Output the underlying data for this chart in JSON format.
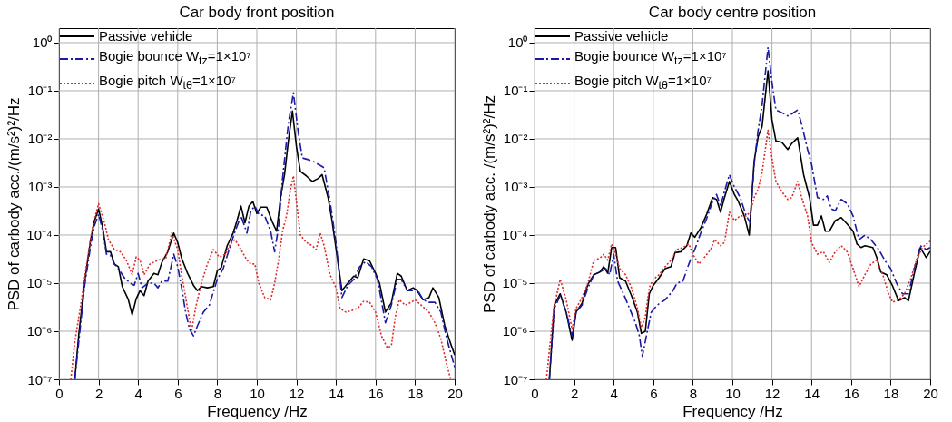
{
  "chart_data": [
    {
      "type": "line",
      "title": "Car body front position",
      "xlabel": "Frequency /Hz",
      "ylabel": "PSD of carbody acc./(m/s²)²/Hz",
      "log": "y",
      "grid": true,
      "legend": "top left",
      "xlim": [
        0,
        20
      ],
      "xticks": [
        0,
        2,
        4,
        6,
        8,
        10,
        12,
        14,
        16,
        18,
        20
      ],
      "ylim": [
        1e-07,
        2
      ],
      "yticks": [
        {
          "value": 1e-07,
          "label": "10⁻⁷"
        },
        {
          "value": 1e-06,
          "label": "10⁻⁶"
        },
        {
          "value": 1e-05,
          "label": "10⁻⁵"
        },
        {
          "value": 0.0001,
          "label": "10⁻⁴"
        },
        {
          "value": 0.001,
          "label": "10⁻³"
        },
        {
          "value": 0.01,
          "label": "10⁻²"
        },
        {
          "value": 0.1,
          "label": "10⁻¹"
        },
        {
          "value": 1,
          "label": "10⁰"
        }
      ],
      "series": [
        {
          "name": "Passive vehicle",
          "color": "#000000",
          "line_style": "solid",
          "x": [
            0.8,
            1.0,
            1.3,
            1.6,
            1.8,
            2.0,
            2.2,
            2.4,
            2.6,
            2.8,
            3.0,
            3.2,
            3.5,
            3.7,
            3.9,
            4.1,
            4.3,
            4.5,
            4.8,
            5.0,
            5.2,
            5.5,
            5.8,
            6.0,
            6.2,
            6.5,
            6.8,
            7.0,
            7.2,
            7.5,
            7.8,
            8.0,
            8.2,
            8.5,
            8.8,
            9.0,
            9.2,
            9.4,
            9.6,
            9.8,
            10.0,
            10.2,
            10.5,
            10.8,
            11.0,
            11.2,
            11.4,
            11.6,
            11.8,
            12.0,
            12.2,
            12.5,
            12.8,
            13.1,
            13.3,
            13.6,
            13.8,
            14.0,
            14.3,
            14.6,
            14.9,
            15.1,
            15.4,
            15.7,
            16.0,
            16.2,
            16.5,
            16.8,
            17.1,
            17.3,
            17.6,
            17.9,
            18.1,
            18.4,
            18.7,
            18.9,
            19.2,
            19.5,
            19.8,
            20.0
          ],
          "values": [
            1e-07,
            8.5e-07,
            1.1e-05,
            8e-05,
            0.0002,
            0.00035,
            0.00015,
            4.5e-05,
            4.5e-05,
            2.5e-05,
            2.2e-05,
            8.5e-06,
            4.6e-06,
            2.2e-06,
            4.7e-06,
            7e-06,
            5.5e-06,
            1.1e-05,
            1.6e-05,
            1.5e-05,
            2.7e-05,
            4.5e-05,
            0.00011,
            7e-05,
            3.3e-05,
            1.6e-05,
            9e-06,
            7e-06,
            8.5e-06,
            8e-06,
            8.5e-06,
            1.8e-05,
            2.1e-05,
            6e-05,
            0.00011,
            0.0002,
            0.0004,
            0.00018,
            0.0004,
            0.0005,
            0.00028,
            0.00038,
            0.00038,
            0.00018,
            0.00012,
            0.0006,
            0.0018,
            0.0095,
            0.038,
            0.007,
            0.0021,
            0.0017,
            0.0013,
            0.0015,
            0.0018,
            0.0006,
            0.0002,
            5.3e-05,
            7e-06,
            1e-05,
            1.4e-05,
            1.3e-05,
            3.2e-05,
            2.9e-05,
            1.6e-05,
            1e-05,
            2.5e-06,
            3.9e-06,
            1.6e-05,
            1.4e-05,
            7e-06,
            8e-06,
            7e-06,
            4.5e-06,
            5e-06,
            8e-06,
            5e-06,
            1.3e-06,
            5.5e-07,
            3.2e-07
          ]
        },
        {
          "name": "Bogie bounce W$_{tz}$=1×10⁷",
          "color": "#1a1aa6",
          "line_style": "dashed",
          "x": [
            0.8,
            1.0,
            1.3,
            1.6,
            1.8,
            2.0,
            2.2,
            2.4,
            2.6,
            2.8,
            3.0,
            3.3,
            3.6,
            3.8,
            4.0,
            4.2,
            4.5,
            4.8,
            5.0,
            5.2,
            5.5,
            5.8,
            6.0,
            6.2,
            6.4,
            6.6,
            6.8,
            7.0,
            7.3,
            7.6,
            8.0,
            8.3,
            8.6,
            8.9,
            9.2,
            9.5,
            9.7,
            9.9,
            10.1,
            10.4,
            10.7,
            10.9,
            11.1,
            11.3,
            11.6,
            11.85,
            12.1,
            12.3,
            12.6,
            12.9,
            13.2,
            13.4,
            13.7,
            14.0,
            14.3,
            14.6,
            14.9,
            15.2,
            15.5,
            15.8,
            16.1,
            16.5,
            16.8,
            17.1,
            17.3,
            17.6,
            17.9,
            18.1,
            18.4,
            18.7,
            19.0,
            19.3,
            19.6,
            20.0
          ],
          "values": [
            1e-07,
            6e-07,
            9e-06,
            6e-05,
            0.00016,
            0.00027,
            0.00013,
            4e-05,
            3.8e-05,
            2.5e-05,
            2e-05,
            1.3e-05,
            1e-05,
            9e-06,
            1.6e-05,
            8e-06,
            1e-05,
            1e-05,
            8e-06,
            1.1e-05,
            1.1e-05,
            4e-05,
            2.2e-05,
            8e-06,
            2.5e-06,
            1.1e-06,
            8e-07,
            1.3e-06,
            2.5e-06,
            3.5e-06,
            1.2e-05,
            2e-05,
            5e-05,
            0.00012,
            0.00025,
            0.00011,
            0.00032,
            0.0004,
            0.00027,
            0.00025,
            0.00012,
            4.5e-05,
            0.00015,
            0.0015,
            0.022,
            0.09,
            0.013,
            0.004,
            0.0037,
            0.0033,
            0.0028,
            0.0025,
            0.0005,
            7e-05,
            5e-06,
            9e-06,
            1.2e-05,
            2.2e-05,
            2.8e-05,
            2.2e-05,
            1.2e-05,
            1.5e-06,
            3.5e-06,
            1.2e-05,
            1.2e-05,
            7e-06,
            7e-06,
            7.5e-06,
            4.5e-06,
            4e-06,
            4e-06,
            2.5e-06,
            7e-07,
            1.8e-07
          ]
        },
        {
          "name": "Bogie pitch W$_{tθ}$=1×10⁷",
          "color": "#e0282a",
          "line_style": "dotted",
          "x": [
            0.6,
            0.8,
            1.1,
            1.4,
            1.7,
            2.0,
            2.3,
            2.5,
            2.8,
            3.1,
            3.4,
            3.7,
            3.9,
            4.1,
            4.3,
            4.6,
            5.0,
            5.4,
            5.7,
            6.0,
            6.2,
            6.5,
            6.7,
            6.9,
            7.2,
            7.5,
            7.8,
            8.1,
            8.4,
            8.7,
            8.9,
            9.2,
            9.5,
            9.7,
            9.9,
            10.1,
            10.4,
            10.7,
            10.9,
            11.1,
            11.3,
            11.5,
            11.7,
            11.85,
            12.0,
            12.2,
            12.5,
            12.8,
            13.0,
            13.2,
            13.4,
            13.7,
            14.0,
            14.2,
            14.5,
            14.8,
            15.1,
            15.4,
            15.7,
            16.0,
            16.3,
            16.6,
            16.8,
            17.0,
            17.2,
            17.5,
            17.8,
            18.0,
            18.3,
            18.7,
            19.0,
            19.3,
            19.6,
            19.8
          ],
          "values": [
            1e-07,
            6e-07,
            3.5e-06,
            2.5e-05,
            0.00015,
            0.00045,
            0.00018,
            8e-05,
            5e-05,
            4.5e-05,
            3e-05,
            1.5e-05,
            3.5e-05,
            3e-05,
            1.5e-05,
            2.5e-05,
            3e-05,
            3.3e-05,
            0.00011,
            5e-05,
            1.5e-05,
            3e-06,
            1e-06,
            3e-06,
            1e-05,
            2.5e-05,
            5e-05,
            3.5e-05,
            4e-05,
            7e-05,
            8e-05,
            5e-05,
            3e-05,
            2.5e-05,
            2.5e-05,
            1e-05,
            5e-06,
            4.5e-06,
            1e-05,
            3e-05,
            0.00012,
            0.00025,
            0.0009,
            0.0017,
            0.0005,
            0.0001,
            7e-05,
            6e-05,
            5e-05,
            0.00011,
            6e-05,
            1.5e-05,
            8e-06,
            3e-06,
            2.5e-06,
            2.7e-06,
            3e-06,
            4.2e-06,
            4e-06,
            2.5e-06,
            8e-07,
            4.5e-07,
            5e-07,
            2e-06,
            4.5e-06,
            3.5e-06,
            4e-06,
            4.5e-06,
            3.5e-06,
            2.5e-06,
            1.5e-06,
            7e-07,
            2e-07,
            1e-07
          ]
        }
      ]
    },
    {
      "type": "line",
      "title": "Car body centre position",
      "xlabel": "Frequency /Hz",
      "ylabel": "PSD of carbody acc. /(m/s²)²/Hz",
      "log": "y",
      "grid": true,
      "legend": "top left",
      "xlim": [
        0,
        20
      ],
      "xticks": [
        0,
        2,
        4,
        6,
        8,
        10,
        12,
        14,
        16,
        18,
        20
      ],
      "ylim": [
        1e-07,
        2
      ],
      "yticks": [
        {
          "value": 1e-07,
          "label": "10⁻⁷"
        },
        {
          "value": 1e-06,
          "label": "10⁻⁶"
        },
        {
          "value": 1e-05,
          "label": "10⁻⁵"
        },
        {
          "value": 0.0001,
          "label": "10⁻⁴"
        },
        {
          "value": 0.001,
          "label": "10⁻³"
        },
        {
          "value": 0.01,
          "label": "10⁻²"
        },
        {
          "value": 0.1,
          "label": "10⁻¹"
        },
        {
          "value": 1,
          "label": "10⁰"
        }
      ],
      "series": [
        {
          "name": "Passive vehicle",
          "color": "#000000",
          "line_style": "solid",
          "x": [
            0.75,
            1.0,
            1.3,
            1.6,
            1.8,
            1.9,
            2.1,
            2.4,
            2.7,
            3.0,
            3.3,
            3.5,
            3.7,
            3.9,
            4.1,
            4.3,
            4.6,
            4.9,
            5.2,
            5.4,
            5.6,
            5.8,
            6.0,
            6.3,
            6.6,
            6.9,
            7.1,
            7.4,
            7.7,
            7.9,
            8.1,
            8.4,
            8.7,
            9.0,
            9.2,
            9.4,
            9.6,
            9.85,
            10.1,
            10.3,
            10.6,
            10.85,
            11.1,
            11.3,
            11.5,
            11.8,
            12.0,
            12.2,
            12.5,
            12.8,
            13.0,
            13.3,
            13.6,
            13.9,
            14.1,
            14.3,
            14.5,
            14.7,
            14.9,
            15.2,
            15.5,
            15.8,
            16.1,
            16.3,
            16.5,
            16.7,
            17.1,
            17.3,
            17.5,
            17.8,
            18.1,
            18.4,
            18.7,
            18.9,
            19.2,
            19.5,
            19.8,
            20.0
          ],
          "values": [
            1e-07,
            3.5e-06,
            6e-06,
            2.5e-06,
            1e-06,
            6.5e-07,
            2.5e-06,
            3.8e-06,
            9.5e-06,
            1.5e-05,
            1.7e-05,
            2.2e-05,
            1.6e-05,
            5.5e-05,
            5.5e-05,
            1.3e-05,
            1.1e-05,
            5.5e-06,
            2.5e-06,
            9e-07,
            1e-06,
            6e-06,
            9e-06,
            1.3e-05,
            2e-05,
            2.2e-05,
            4.3e-05,
            4.5e-05,
            6e-05,
            0.00011,
            9e-05,
            0.00014,
            0.00027,
            0.0006,
            0.00055,
            0.0003,
            0.0006,
            0.0013,
            0.0007,
            0.0005,
            0.00025,
            0.0001,
            0.0034,
            0.011,
            0.018,
            0.26,
            0.025,
            0.009,
            0.0085,
            0.006,
            0.008,
            0.0105,
            0.0018,
            0.0006,
            0.00016,
            0.00016,
            0.00025,
            0.00012,
            0.00012,
            0.0002,
            0.00023,
            0.00017,
            0.00012,
            6.5e-05,
            5.5e-05,
            6e-05,
            5.5e-05,
            3.4e-05,
            1.7e-05,
            1.5e-05,
            8.7e-06,
            4.3e-06,
            5e-06,
            4.3e-06,
            1.6e-05,
            5.5e-05,
            3.4e-05,
            4.6e-05
          ]
        },
        {
          "name": "Bogie bounce W$_{tz}$=1×10⁷",
          "color": "#1a1aa6",
          "line_style": "dashed",
          "x": [
            0.75,
            1.0,
            1.3,
            1.6,
            1.9,
            2.1,
            2.4,
            2.7,
            3.0,
            3.3,
            3.6,
            3.8,
            4.0,
            4.2,
            4.5,
            4.8,
            5.1,
            5.3,
            5.45,
            5.7,
            5.9,
            6.2,
            6.6,
            7.0,
            7.2,
            7.5,
            7.8,
            8.1,
            8.4,
            8.7,
            9.0,
            9.2,
            9.4,
            9.6,
            9.85,
            10.1,
            10.4,
            10.7,
            10.9,
            11.1,
            11.3,
            11.5,
            11.8,
            12.0,
            12.2,
            12.5,
            12.8,
            13.0,
            13.3,
            13.5,
            13.8,
            14.0,
            14.3,
            14.6,
            14.8,
            15.0,
            15.2,
            15.5,
            15.8,
            16.1,
            16.4,
            16.7,
            17.0,
            17.4,
            17.7,
            18.0,
            18.3,
            18.6,
            18.9,
            19.2,
            19.5,
            19.8,
            20.0
          ],
          "values": [
            1e-07,
            3e-06,
            5.5e-06,
            2.5e-06,
            8e-07,
            2.5e-06,
            3.5e-06,
            8e-06,
            1.5e-05,
            1.7e-05,
            2e-05,
            1.5e-05,
            4e-05,
            1.1e-05,
            6e-06,
            3e-06,
            1.5e-06,
            8e-07,
            3e-07,
            1e-06,
            2.5e-06,
            3.5e-06,
            4.5e-06,
            7e-06,
            1e-05,
            1.1e-05,
            2.5e-05,
            5e-05,
            0.00011,
            0.00022,
            0.0005,
            0.0007,
            0.0004,
            0.0008,
            0.0018,
            0.001,
            0.0006,
            0.00025,
            0.00018,
            0.003,
            0.015,
            0.05,
            0.8,
            0.15,
            0.04,
            0.035,
            0.03,
            0.033,
            0.04,
            0.02,
            0.006,
            0.003,
            0.0006,
            0.00055,
            0.00065,
            0.00035,
            0.00032,
            0.00055,
            0.00045,
            0.00025,
            8e-05,
            0.0001,
            8e-05,
            5e-05,
            3e-05,
            2e-05,
            1e-05,
            6e-06,
            6e-06,
            2e-05,
            6e-05,
            5e-05,
            5.5e-05
          ]
        },
        {
          "name": "Bogie pitch W$_{tθ}$=1×10⁷",
          "color": "#e0282a",
          "line_style": "dotted",
          "x": [
            0.6,
            0.85,
            1.0,
            1.3,
            1.6,
            1.9,
            2.1,
            2.4,
            2.7,
            3.0,
            3.3,
            3.5,
            3.7,
            3.9,
            4.1,
            4.3,
            4.6,
            4.9,
            5.2,
            5.4,
            5.6,
            5.8,
            6.0,
            6.3,
            6.6,
            6.9,
            7.2,
            7.5,
            7.8,
            8.0,
            8.3,
            8.6,
            8.9,
            9.1,
            9.4,
            9.6,
            9.85,
            10.1,
            10.4,
            10.7,
            10.9,
            11.1,
            11.3,
            11.5,
            11.8,
            12.0,
            12.2,
            12.5,
            12.8,
            13.0,
            13.3,
            13.5,
            13.8,
            14.0,
            14.3,
            14.6,
            14.9,
            15.2,
            15.5,
            15.8,
            16.1,
            16.4,
            16.7,
            17.0,
            17.3,
            17.6,
            17.9,
            18.1,
            18.4,
            18.7,
            19.0,
            19.3,
            19.6,
            20.0
          ],
          "values": [
            1e-07,
            1e-06,
            3.5e-06,
            1.2e-05,
            4.5e-06,
            1.1e-06,
            3e-06,
            5e-06,
            1e-05,
            3e-05,
            3.3e-05,
            4e-05,
            3e-05,
            6.5e-05,
            4e-05,
            2e-05,
            1.5e-05,
            8e-06,
            3e-06,
            1.2e-06,
            2e-06,
            8e-06,
            1.2e-05,
            1.5e-05,
            2.2e-05,
            3e-05,
            5e-05,
            5.5e-05,
            6.5e-05,
            4e-05,
            2.5e-05,
            3.5e-05,
            5e-05,
            8e-05,
            6e-05,
            7e-05,
            0.0003,
            0.0002,
            0.00025,
            0.00025,
            0.0003,
            0.0006,
            0.0009,
            0.002,
            0.015,
            0.004,
            0.0013,
            0.0008,
            0.00055,
            0.0006,
            0.0013,
            0.0006,
            0.00025,
            7e-05,
            4e-05,
            4.5e-05,
            2.7e-05,
            4.5e-05,
            6e-05,
            4.5e-05,
            2e-05,
            8.5e-06,
            1.5e-05,
            2.5e-05,
            3e-05,
            1.5e-05,
            6e-06,
            4e-06,
            4.5e-06,
            6e-06,
            1.2e-05,
            3e-05,
            5.5e-05,
            7.5e-05
          ]
        }
      ]
    }
  ]
}
